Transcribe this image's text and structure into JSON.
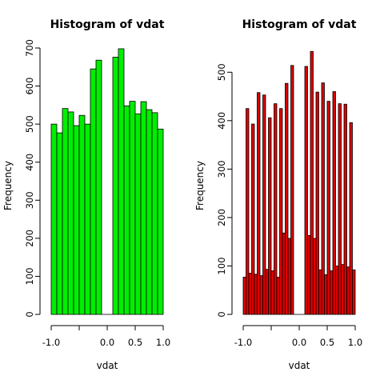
{
  "chart_data": [
    {
      "type": "bar",
      "title": "Histogram of vdat",
      "xlabel": "vdat",
      "ylabel": "Frequency",
      "bar_color": "#00ee00",
      "edge_color": "#000000",
      "xlim": [
        -1.0,
        1.0
      ],
      "ylim": [
        0,
        700
      ],
      "x_ticks": [
        -1.0,
        -0.5,
        0.0,
        0.5,
        1.0
      ],
      "x_tick_labels": [
        "-1.0",
        "",
        "0.0",
        "0.5",
        "1.0"
      ],
      "y_ticks": [
        0,
        100,
        200,
        300,
        400,
        500,
        600,
        700
      ],
      "y_tick_labels": [
        "0",
        "100",
        "200",
        "300",
        "400",
        "500",
        "600",
        "700"
      ],
      "bin_width": 0.1,
      "bin_starts": [
        -1.0,
        -0.9,
        -0.8,
        -0.7,
        -0.6,
        -0.5,
        -0.4,
        -0.3,
        -0.2,
        -0.1,
        0.0,
        0.1,
        0.2,
        0.3,
        0.4,
        0.5,
        0.6,
        0.7,
        0.8,
        0.9
      ],
      "values": [
        500,
        477,
        541,
        532,
        496,
        523,
        500,
        645,
        668,
        0,
        0,
        676,
        698,
        548,
        560,
        527,
        559,
        538,
        530,
        487
      ]
    },
    {
      "type": "bar",
      "title": "Histogram of vdat",
      "xlabel": "vdat",
      "ylabel": "Frequency",
      "bar_color": "#dd0000",
      "edge_color": "#000000",
      "xlim": [
        -1.0,
        1.0
      ],
      "ylim": [
        0,
        550
      ],
      "x_ticks": [
        -1.0,
        -0.5,
        0.0,
        0.5,
        1.0
      ],
      "x_tick_labels": [
        "-1.0",
        "",
        "0.0",
        "0.5",
        "1.0"
      ],
      "y_ticks": [
        0,
        100,
        200,
        300,
        400,
        500
      ],
      "y_tick_labels": [
        "0",
        "100",
        "200",
        "300",
        "400",
        "500"
      ],
      "bin_width": 0.05,
      "bin_starts": [
        -1.0,
        -0.95,
        -0.9,
        -0.85,
        -0.8,
        -0.75,
        -0.7,
        -0.65,
        -0.6,
        -0.55,
        -0.5,
        -0.45,
        -0.4,
        -0.35,
        -0.3,
        -0.25,
        -0.2,
        -0.15,
        -0.1,
        -0.05,
        0.0,
        0.05,
        0.1,
        0.15,
        0.2,
        0.25,
        0.3,
        0.35,
        0.4,
        0.45,
        0.5,
        0.55,
        0.6,
        0.65,
        0.7,
        0.75,
        0.8,
        0.85,
        0.9,
        0.95
      ],
      "values": [
        77,
        425,
        85,
        393,
        83,
        458,
        80,
        453,
        93,
        406,
        90,
        435,
        77,
        425,
        168,
        477,
        157,
        514,
        0,
        0,
        0,
        0,
        512,
        163,
        543,
        157,
        459,
        92,
        478,
        82,
        440,
        90,
        460,
        100,
        435,
        103,
        434,
        98,
        396,
        92
      ]
    }
  ]
}
